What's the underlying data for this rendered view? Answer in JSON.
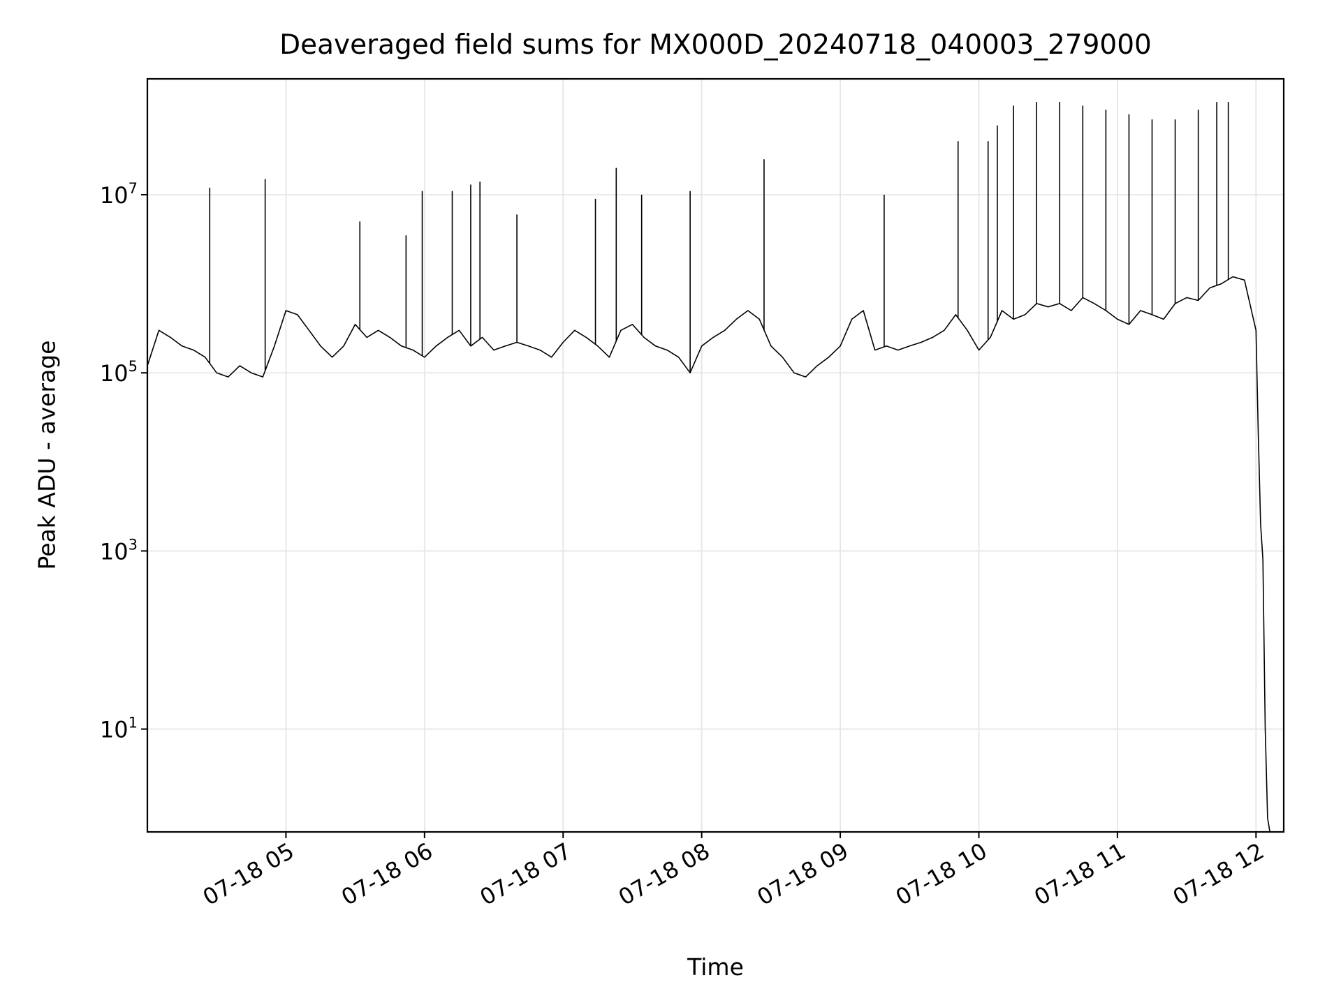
{
  "chart_data": {
    "type": "line",
    "title": "Deaveraged field sums for MX000D_20240718_040003_279000",
    "xlabel": "Time",
    "ylabel": "Peak ADU - average",
    "yscale": "log",
    "grid": true,
    "line_color": "#000000",
    "grid_color": "#e6e6e6",
    "xlim": [
      "2024-07-18 04:00",
      "2024-07-18 12:12"
    ],
    "ylim": [
      0.7,
      200000000
    ],
    "x_ticks": [
      {
        "t": "2024-07-18 05:00",
        "label": "07-18 05"
      },
      {
        "t": "2024-07-18 06:00",
        "label": "07-18 06"
      },
      {
        "t": "2024-07-18 07:00",
        "label": "07-18 07"
      },
      {
        "t": "2024-07-18 08:00",
        "label": "07-18 08"
      },
      {
        "t": "2024-07-18 09:00",
        "label": "07-18 09"
      },
      {
        "t": "2024-07-18 10:00",
        "label": "07-18 10"
      },
      {
        "t": "2024-07-18 11:00",
        "label": "07-18 11"
      },
      {
        "t": "2024-07-18 12:00",
        "label": "07-18 12"
      }
    ],
    "y_ticks": [
      {
        "value": 10,
        "base": "10",
        "exp": "1"
      },
      {
        "value": 1000,
        "base": "10",
        "exp": "3"
      },
      {
        "value": 100000,
        "base": "10",
        "exp": "5"
      },
      {
        "value": 10000000,
        "base": "10",
        "exp": "7"
      }
    ],
    "series": [
      {
        "x": [
          "2024-07-18 04:00",
          "2024-07-18 04:05",
          "2024-07-18 04:10",
          "2024-07-18 04:15",
          "2024-07-18 04:20",
          "2024-07-18 04:25",
          "2024-07-18 04:30",
          "2024-07-18 04:35",
          "2024-07-18 04:40",
          "2024-07-18 04:45",
          "2024-07-18 04:50",
          "2024-07-18 04:55",
          "2024-07-18 05:00",
          "2024-07-18 05:05",
          "2024-07-18 05:10",
          "2024-07-18 05:15",
          "2024-07-18 05:20",
          "2024-07-18 05:25",
          "2024-07-18 05:30",
          "2024-07-18 05:35",
          "2024-07-18 05:40",
          "2024-07-18 05:45",
          "2024-07-18 05:50",
          "2024-07-18 05:55",
          "2024-07-18 06:00",
          "2024-07-18 06:05",
          "2024-07-18 06:10",
          "2024-07-18 06:15",
          "2024-07-18 06:20",
          "2024-07-18 06:25",
          "2024-07-18 06:30",
          "2024-07-18 06:35",
          "2024-07-18 06:40",
          "2024-07-18 06:45",
          "2024-07-18 06:50",
          "2024-07-18 06:55",
          "2024-07-18 07:00",
          "2024-07-18 07:05",
          "2024-07-18 07:10",
          "2024-07-18 07:15",
          "2024-07-18 07:20",
          "2024-07-18 07:25",
          "2024-07-18 07:30",
          "2024-07-18 07:35",
          "2024-07-18 07:40",
          "2024-07-18 07:45",
          "2024-07-18 07:50",
          "2024-07-18 07:55",
          "2024-07-18 08:00",
          "2024-07-18 08:05",
          "2024-07-18 08:10",
          "2024-07-18 08:15",
          "2024-07-18 08:20",
          "2024-07-18 08:25",
          "2024-07-18 08:30",
          "2024-07-18 08:35",
          "2024-07-18 08:40",
          "2024-07-18 08:45",
          "2024-07-18 08:50",
          "2024-07-18 08:55",
          "2024-07-18 09:00",
          "2024-07-18 09:05",
          "2024-07-18 09:10",
          "2024-07-18 09:15",
          "2024-07-18 09:20",
          "2024-07-18 09:25",
          "2024-07-18 09:30",
          "2024-07-18 09:35",
          "2024-07-18 09:40",
          "2024-07-18 09:45",
          "2024-07-18 09:50",
          "2024-07-18 09:55",
          "2024-07-18 10:00",
          "2024-07-18 10:05",
          "2024-07-18 10:10",
          "2024-07-18 10:15",
          "2024-07-18 10:20",
          "2024-07-18 10:25",
          "2024-07-18 10:30",
          "2024-07-18 10:35",
          "2024-07-18 10:40",
          "2024-07-18 10:45",
          "2024-07-18 10:50",
          "2024-07-18 10:55",
          "2024-07-18 11:00",
          "2024-07-18 11:05",
          "2024-07-18 11:10",
          "2024-07-18 11:15",
          "2024-07-18 11:20",
          "2024-07-18 11:25",
          "2024-07-18 11:30",
          "2024-07-18 11:35",
          "2024-07-18 11:40",
          "2024-07-18 11:45",
          "2024-07-18 11:50",
          "2024-07-18 11:55",
          "2024-07-18 12:00",
          "2024-07-18 12:01",
          "2024-07-18 12:02",
          "2024-07-18 12:03",
          "2024-07-18 12:04",
          "2024-07-18 12:05",
          "2024-07-18 12:06"
        ],
        "values": [
          120000,
          300000,
          250000,
          200000,
          180000,
          150000,
          100000,
          90000,
          120000,
          100000,
          90000,
          200000,
          500000,
          450000,
          300000,
          200000,
          150000,
          200000,
          350000,
          250000,
          300000,
          250000,
          200000,
          180000,
          150000,
          200000,
          250000,
          300000,
          200000,
          250000,
          180000,
          200000,
          220000,
          200000,
          180000,
          150000,
          220000,
          300000,
          250000,
          200000,
          150000,
          300000,
          350000,
          250000,
          200000,
          180000,
          150000,
          100000,
          200000,
          250000,
          300000,
          400000,
          500000,
          400000,
          200000,
          150000,
          100000,
          90000,
          120000,
          150000,
          200000,
          400000,
          500000,
          180000,
          200000,
          180000,
          200000,
          220000,
          250000,
          300000,
          450000,
          300000,
          180000,
          250000,
          500000,
          400000,
          450000,
          600000,
          550000,
          600000,
          500000,
          700000,
          600000,
          500000,
          400000,
          350000,
          500000,
          450000,
          400000,
          600000,
          700000,
          650000,
          900000,
          1000000,
          1200000,
          1100000,
          300000,
          20000,
          2000,
          800,
          10,
          1,
          0.7
        ]
      }
    ],
    "spikes": [
      {
        "t": "2024-07-18 04:27",
        "value": 12000000
      },
      {
        "t": "2024-07-18 04:51",
        "value": 15000000
      },
      {
        "t": "2024-07-18 05:32",
        "value": 5000000
      },
      {
        "t": "2024-07-18 05:52",
        "value": 3500000
      },
      {
        "t": "2024-07-18 05:59",
        "value": 11000000
      },
      {
        "t": "2024-07-18 06:12",
        "value": 11000000
      },
      {
        "t": "2024-07-18 06:20",
        "value": 13000000
      },
      {
        "t": "2024-07-18 06:24",
        "value": 14000000
      },
      {
        "t": "2024-07-18 06:40",
        "value": 6000000
      },
      {
        "t": "2024-07-18 07:14",
        "value": 9000000
      },
      {
        "t": "2024-07-18 07:23",
        "value": 20000000
      },
      {
        "t": "2024-07-18 07:34",
        "value": 10000000
      },
      {
        "t": "2024-07-18 07:55",
        "value": 11000000
      },
      {
        "t": "2024-07-18 08:27",
        "value": 25000000
      },
      {
        "t": "2024-07-18 09:19",
        "value": 10000000
      },
      {
        "t": "2024-07-18 09:51",
        "value": 40000000
      },
      {
        "t": "2024-07-18 10:04",
        "value": 40000000
      },
      {
        "t": "2024-07-18 10:08",
        "value": 60000000
      },
      {
        "t": "2024-07-18 10:15",
        "value": 100000000
      },
      {
        "t": "2024-07-18 10:25",
        "value": 110000000
      },
      {
        "t": "2024-07-18 10:35",
        "value": 110000000
      },
      {
        "t": "2024-07-18 10:45",
        "value": 100000000
      },
      {
        "t": "2024-07-18 10:55",
        "value": 90000000
      },
      {
        "t": "2024-07-18 11:05",
        "value": 80000000
      },
      {
        "t": "2024-07-18 11:15",
        "value": 70000000
      },
      {
        "t": "2024-07-18 11:25",
        "value": 70000000
      },
      {
        "t": "2024-07-18 11:35",
        "value": 90000000
      },
      {
        "t": "2024-07-18 11:43",
        "value": 110000000
      },
      {
        "t": "2024-07-18 11:48",
        "value": 110000000
      }
    ]
  }
}
